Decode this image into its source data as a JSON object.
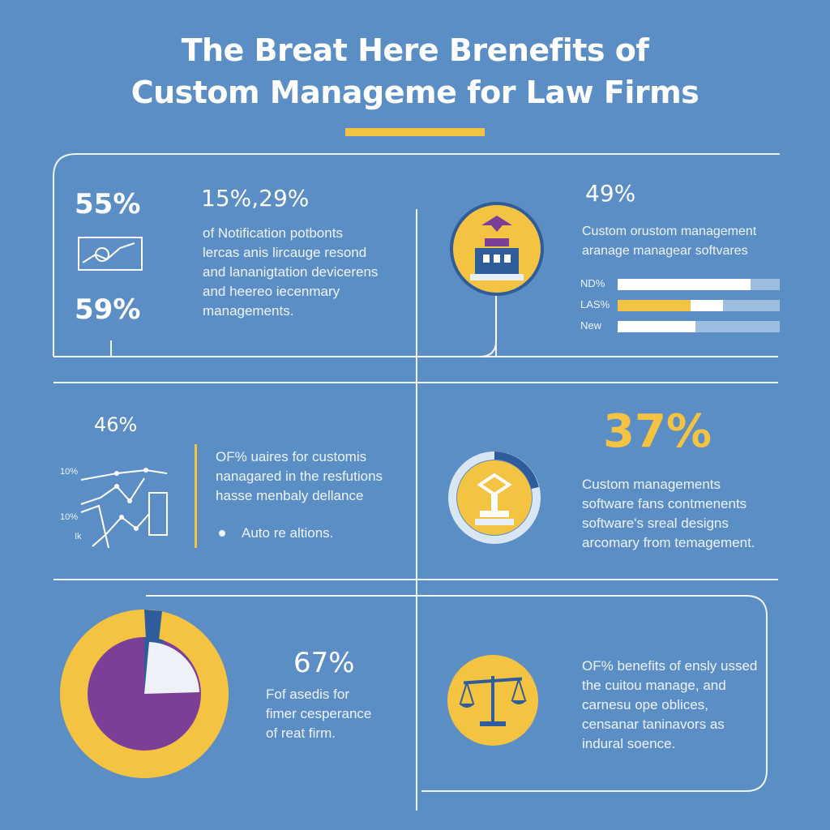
{
  "title": {
    "line1": "The Breat Here Brenefits of",
    "line2": "Custom Manageme for Law Firms"
  },
  "panel1": {
    "stat_top": "55%",
    "stat_bottom": "59%",
    "headline": "15%,29%",
    "text": [
      "of Notification potbonts",
      "lercas anis lircauge resond",
      "and lananigtation devicerens",
      "and heereo iecenmary",
      "managements."
    ]
  },
  "panel2": {
    "stat": "49%",
    "text": [
      "Custom orustom management",
      "aranage managear softvares"
    ],
    "bars": [
      {
        "label": "ND%",
        "value": 0.82,
        "color": "#ffffff"
      },
      {
        "label": "LAS%",
        "value": 0.45,
        "color": "#f5c342",
        "extra": 0.2
      },
      {
        "label": "New",
        "value": 0.48,
        "color": "#ffffff"
      }
    ]
  },
  "panel3": {
    "stat": "46%",
    "axis_labels": [
      "10%",
      "10%",
      "Ik"
    ],
    "text": [
      "OF% uaires for customis",
      "nanagared in the resfutions",
      "hasse menbaly dellance"
    ],
    "bullet": "Auto re altions."
  },
  "panel4": {
    "stat": "37%",
    "text": [
      "Custom managements",
      "software fans contmenents",
      "software's sreal designs",
      "arcomary from temagement."
    ]
  },
  "panel5": {
    "stat": "67%",
    "text": [
      "Fof asedis for",
      "fimer cesperance",
      "of reat firm."
    ]
  },
  "panel6": {
    "text": [
      "OF% benefits of ensly ussed",
      "the cuitou manage, and",
      "carnesu ope oblices,",
      "censanar taninavors as",
      "indural soence."
    ]
  },
  "colors": {
    "background": "#5b8ec4",
    "accent": "#f5c342",
    "purple": "#7b3f98",
    "navy": "#2f5c9a"
  }
}
